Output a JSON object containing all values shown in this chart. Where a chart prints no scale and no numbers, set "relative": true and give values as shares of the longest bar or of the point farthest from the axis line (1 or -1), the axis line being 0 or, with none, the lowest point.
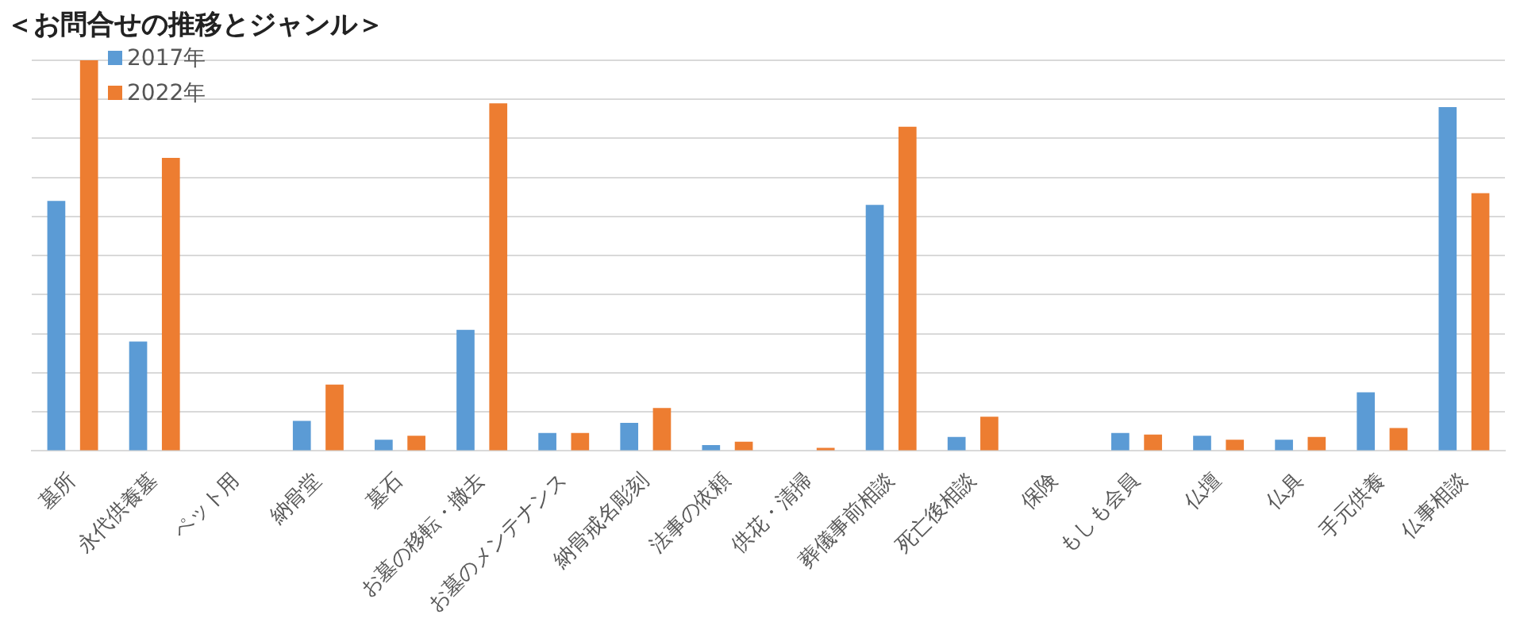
{
  "chart_data": {
    "type": "bar",
    "title": "＜お問合せの推移とジャンル＞",
    "relative": true,
    "grid": "y",
    "legend": "top left",
    "categories": [
      "墓所",
      "永代供養墓",
      "ペット用",
      "納骨堂",
      "墓石",
      "お墓の移転・撤去",
      "お墓のメンテナンス",
      "納骨戒名彫刻",
      "法事の依頼",
      "供花・清掃",
      "葬儀事前相談",
      "死亡後相談",
      "保険",
      "もしも会員",
      "仏壇",
      "仏具",
      "手元供養",
      "仏事相談"
    ],
    "series": [
      {
        "name": "2017年",
        "color": "#5b9bd5",
        "values": [
          0.64,
          0.28,
          0,
          0.077,
          0.029,
          0.31,
          0.046,
          0.072,
          0.015,
          0,
          0.63,
          0.036,
          0,
          0.046,
          0.039,
          0.029,
          0.15,
          0.88
        ]
      },
      {
        "name": "2022年",
        "color": "#ed7d31",
        "values": [
          1,
          0.75,
          0,
          0.17,
          0.039,
          0.89,
          0.046,
          0.11,
          0.024,
          0.008,
          0.83,
          0.088,
          0,
          0.042,
          0.029,
          0.036,
          0.059,
          0.66
        ]
      }
    ]
  }
}
